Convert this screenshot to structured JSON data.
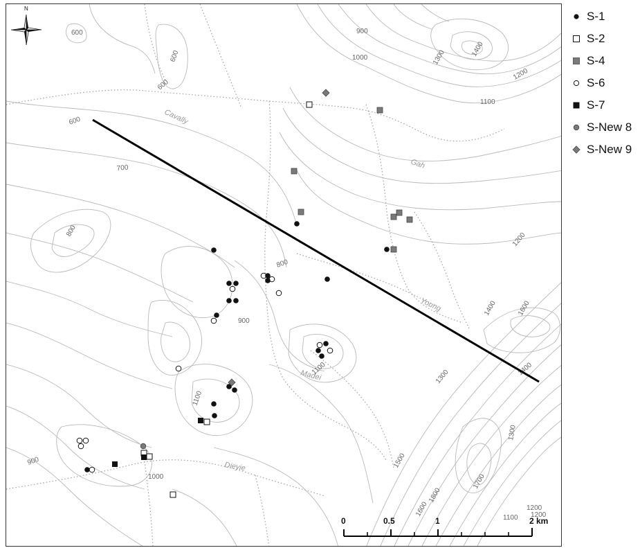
{
  "north_label": "N",
  "legend": [
    {
      "label": "S-1",
      "symbol": "filled-circle",
      "color": "#111111"
    },
    {
      "label": "S-2",
      "symbol": "open-square",
      "color": "#111111"
    },
    {
      "label": "S-4",
      "symbol": "gray-square",
      "color": "#7a7a7a"
    },
    {
      "label": "S-6",
      "symbol": "open-circle",
      "color": "#111111"
    },
    {
      "label": "S-7",
      "symbol": "filled-square",
      "color": "#111111"
    },
    {
      "label": "S-New 8",
      "symbol": "gray-circle",
      "color": "#7a7a7a"
    },
    {
      "label": "S-New 9",
      "symbol": "gray-diamond",
      "color": "#7a7a7a"
    }
  ],
  "contour_labels": [
    "600",
    "600",
    "600",
    "600",
    "700",
    "800",
    "800",
    "900",
    "900",
    "900",
    "1000",
    "1000",
    "1100",
    "1100",
    "1100",
    "1200",
    "1200",
    "1200",
    "1300",
    "1300",
    "1300",
    "1400",
    "1400",
    "1400",
    "1500",
    "1600",
    "1600",
    "1700",
    "1800",
    "1100",
    "1200"
  ],
  "river_labels": [
    "Cavally",
    "Gah",
    "Young",
    "Madei",
    "Dieyie"
  ],
  "scale_bar": {
    "ticks": [
      "0",
      "0.5",
      "1",
      "2 km"
    ]
  }
}
